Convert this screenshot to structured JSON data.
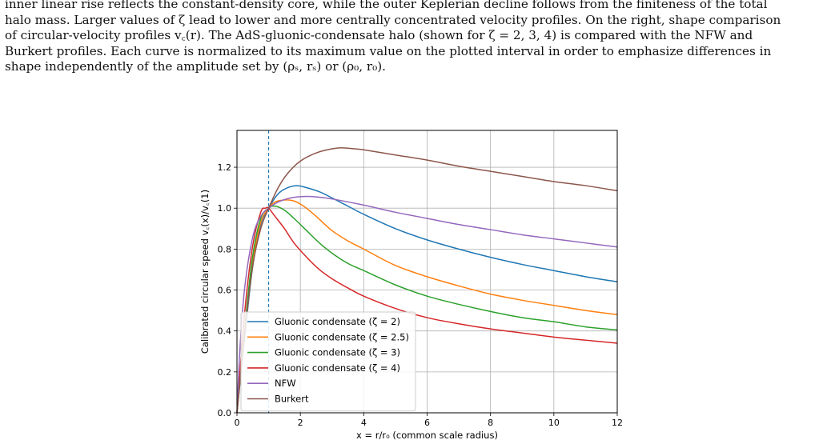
{
  "caption": {
    "lines": [
      "inner linear rise reflects the constant-density core, while the outer Keplerian decline follows from the finiteness of the total",
      "halo mass. Larger values of ζ lead to lower and more centrally concentrated velocity profiles. On the right, shape comparison",
      "of circular-velocity profiles v꜀(r). The AdS-gluonic-condensate halo (shown for ζ = 2, 3, 4) is compared with the NFW and",
      "Burkert profiles. Each curve is normalized to its maximum value on the plotted interval in order to emphasize differences in",
      "shape independently of the amplitude set by (ρₛ, rₛ) or (ρ₀, r₀)."
    ]
  },
  "chart_data": {
    "type": "line",
    "xlabel": "x = r/r₀ (common scale radius)",
    "ylabel": "Calibrated circular speed v꜀(x)/v꜀(1)",
    "xlim": [
      0,
      12
    ],
    "ylim": [
      0,
      1.38
    ],
    "xticks": [
      0,
      2,
      4,
      6,
      8,
      10,
      12
    ],
    "yticks": [
      0.0,
      0.2,
      0.4,
      0.6,
      0.8,
      1.0,
      1.2
    ],
    "xtick_labels": [
      "0",
      "2",
      "4",
      "6",
      "8",
      "10",
      "12"
    ],
    "ytick_labels": [
      "0.0",
      "0.2",
      "0.4",
      "0.6",
      "0.8",
      "1.0",
      "1.2"
    ],
    "grid": true,
    "reference_line": {
      "x": 1,
      "style": "dashed",
      "color": "#1f77b4"
    },
    "legend_position": "lower-left",
    "series": [
      {
        "name": "Gluonic condensate (ζ = 2)",
        "color": "#1f77b4",
        "x": [
          0,
          0.3,
          0.5,
          0.75,
          1,
          1.3,
          1.6,
          1.9,
          2.2,
          2.6,
          3,
          3.5,
          4,
          5,
          6,
          7,
          8,
          9,
          10,
          11,
          12
        ],
        "y": [
          0,
          0.45,
          0.72,
          0.92,
          1.0,
          1.07,
          1.1,
          1.11,
          1.1,
          1.08,
          1.05,
          1.01,
          0.97,
          0.9,
          0.845,
          0.8,
          0.76,
          0.725,
          0.695,
          0.665,
          0.64
        ]
      },
      {
        "name": "Gluonic condensate (ζ = 2.5)",
        "color": "#ff7f0e",
        "x": [
          0,
          0.3,
          0.5,
          0.75,
          1,
          1.2,
          1.5,
          1.8,
          2.1,
          2.5,
          3,
          3.5,
          4,
          5,
          6,
          7,
          8,
          9,
          10,
          11,
          12
        ],
        "y": [
          0,
          0.47,
          0.74,
          0.93,
          1.0,
          1.03,
          1.04,
          1.035,
          1.01,
          0.96,
          0.89,
          0.84,
          0.8,
          0.72,
          0.665,
          0.62,
          0.58,
          0.55,
          0.525,
          0.5,
          0.48
        ]
      },
      {
        "name": "Gluonic condensate (ζ = 3)",
        "color": "#2ca02c",
        "x": [
          0,
          0.3,
          0.5,
          0.75,
          1,
          1.2,
          1.5,
          1.8,
          2.2,
          2.6,
          3,
          3.5,
          4,
          5,
          6,
          7,
          8,
          9,
          10,
          11,
          12
        ],
        "y": [
          0,
          0.5,
          0.77,
          0.95,
          1.0,
          1.01,
          0.99,
          0.95,
          0.89,
          0.83,
          0.78,
          0.73,
          0.695,
          0.625,
          0.57,
          0.53,
          0.495,
          0.465,
          0.445,
          0.42,
          0.405
        ]
      },
      {
        "name": "Gluonic condensate (ζ = 4)",
        "color": "#d62728",
        "x": [
          0,
          0.25,
          0.5,
          0.75,
          0.9,
          1,
          1.2,
          1.5,
          1.8,
          2.2,
          2.6,
          3,
          3.5,
          4,
          5,
          6,
          7,
          8,
          9,
          10,
          11,
          12
        ],
        "y": [
          0,
          0.5,
          0.82,
          0.98,
          1.0,
          1.0,
          0.96,
          0.9,
          0.83,
          0.76,
          0.7,
          0.655,
          0.61,
          0.57,
          0.51,
          0.465,
          0.435,
          0.41,
          0.39,
          0.37,
          0.355,
          0.34
        ]
      },
      {
        "name": "NFW",
        "color": "#9467bd",
        "x": [
          0,
          0.1,
          0.25,
          0.5,
          0.75,
          1,
          1.3,
          1.7,
          2.1,
          2.5,
          3,
          4,
          5,
          6,
          7,
          8,
          9,
          10,
          11,
          12
        ],
        "y": [
          0,
          0.33,
          0.62,
          0.86,
          0.96,
          1.0,
          1.03,
          1.05,
          1.057,
          1.055,
          1.045,
          1.015,
          0.98,
          0.95,
          0.92,
          0.895,
          0.87,
          0.85,
          0.83,
          0.81
        ]
      },
      {
        "name": "Burkert",
        "color": "#8c564b",
        "x": [
          0,
          0.25,
          0.5,
          0.75,
          1,
          1.3,
          1.6,
          2,
          2.5,
          3,
          3.3,
          3.7,
          4,
          5,
          6,
          7,
          8,
          9,
          10,
          11,
          12
        ],
        "y": [
          0,
          0.4,
          0.72,
          0.9,
          1.0,
          1.1,
          1.17,
          1.23,
          1.27,
          1.29,
          1.295,
          1.29,
          1.285,
          1.26,
          1.235,
          1.205,
          1.18,
          1.155,
          1.13,
          1.11,
          1.085
        ]
      }
    ]
  }
}
